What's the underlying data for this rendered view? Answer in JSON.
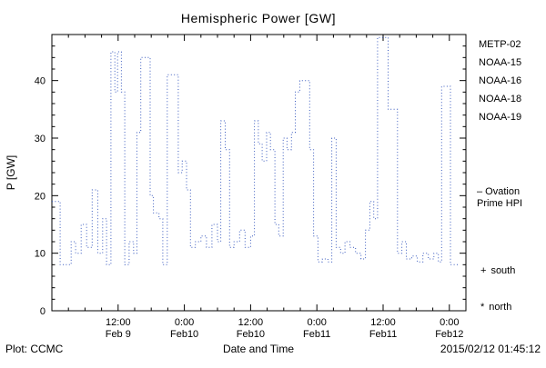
{
  "title": "Hemispheric Power [GW]",
  "y_axis_label": "P [GW]",
  "x_axis_label": "Date and Time",
  "footer": {
    "plot_credit": "Plot: CCMC",
    "timestamp": "2015/02/12 01:45:12"
  },
  "legend": {
    "satellites": [
      {
        "label": "METP-02",
        "color": "#000000"
      },
      {
        "label": "NOAA-15",
        "color": "#2a50c8"
      },
      {
        "label": "NOAA-16",
        "color": "#00b4c8"
      },
      {
        "label": "NOAA-18",
        "color": "#66c878"
      },
      {
        "label": "NOAA-19",
        "color": "#cc9833"
      }
    ],
    "model_line": {
      "color": "#3a5bbf",
      "label_lines": [
        "– Ovation",
        "Prime HPI"
      ]
    },
    "south": {
      "symbol": "+",
      "label": "south"
    },
    "north": {
      "symbol": "*",
      "label": "north"
    }
  },
  "chart_data": {
    "type": "line",
    "style": "dotted-step",
    "series_name": "Ovation Prime HPI",
    "color": "#3a5bbf",
    "title": "Hemispheric Power [GW]",
    "xlabel": "Date and Time",
    "ylabel": "P [GW]",
    "x_unit": "hours since 2015 Feb 9 00:00",
    "xlim_hours": [
      0,
      75
    ],
    "ylim": [
      0,
      48
    ],
    "y_ticks_major": [
      0,
      10,
      20,
      30,
      40
    ],
    "y_tick_minor_step": 2,
    "x_tick_minor_step_hours": 3,
    "x_ticks_major": [
      {
        "hour": 12,
        "time": "12:00",
        "date": "Feb 9"
      },
      {
        "hour": 24,
        "time": "0:00",
        "date": "Feb10"
      },
      {
        "hour": 36,
        "time": "12:00",
        "date": "Feb10"
      },
      {
        "hour": 48,
        "time": "0:00",
        "date": "Feb11"
      },
      {
        "hour": 60,
        "time": "12:00",
        "date": "Feb11"
      },
      {
        "hour": 72,
        "time": "0:00",
        "date": "Feb12"
      }
    ],
    "steps_hours_value": [
      [
        0,
        19
      ],
      [
        1.5,
        8
      ],
      [
        3.5,
        12
      ],
      [
        4.3,
        10
      ],
      [
        5.3,
        15
      ],
      [
        6.3,
        11
      ],
      [
        7.3,
        21
      ],
      [
        8.3,
        10
      ],
      [
        9.2,
        16
      ],
      [
        9.9,
        8
      ],
      [
        10.7,
        45
      ],
      [
        11.4,
        38
      ],
      [
        11.9,
        45
      ],
      [
        12.6,
        38
      ],
      [
        13.2,
        8
      ],
      [
        14,
        12
      ],
      [
        14.8,
        10
      ],
      [
        15.4,
        31
      ],
      [
        16.1,
        44
      ],
      [
        17.2,
        44
      ],
      [
        17.8,
        20
      ],
      [
        18.4,
        17
      ],
      [
        19.4,
        16
      ],
      [
        20.1,
        8
      ],
      [
        20.9,
        41
      ],
      [
        22.2,
        41
      ],
      [
        22.9,
        24
      ],
      [
        23.6,
        26
      ],
      [
        24.4,
        21
      ],
      [
        25.1,
        11
      ],
      [
        26,
        12
      ],
      [
        27,
        13
      ],
      [
        28,
        11
      ],
      [
        29,
        15
      ],
      [
        30,
        12
      ],
      [
        30.6,
        33
      ],
      [
        31.4,
        28
      ],
      [
        32.2,
        11
      ],
      [
        33,
        12
      ],
      [
        34,
        14
      ],
      [
        35,
        11
      ],
      [
        36,
        13
      ],
      [
        36.7,
        33
      ],
      [
        37.4,
        29
      ],
      [
        38.1,
        26
      ],
      [
        38.9,
        31
      ],
      [
        39.6,
        28
      ],
      [
        40.4,
        15
      ],
      [
        41.1,
        13
      ],
      [
        41.9,
        30
      ],
      [
        42.6,
        28
      ],
      [
        43.4,
        31
      ],
      [
        44.1,
        38
      ],
      [
        44.9,
        40
      ],
      [
        46,
        40
      ],
      [
        46.7,
        28
      ],
      [
        47.4,
        13
      ],
      [
        48.2,
        8.5
      ],
      [
        49,
        9
      ],
      [
        50,
        8.5
      ],
      [
        50.7,
        30
      ],
      [
        51.5,
        11
      ],
      [
        52.3,
        10
      ],
      [
        53.1,
        12
      ],
      [
        54,
        11
      ],
      [
        55,
        10
      ],
      [
        56,
        9
      ],
      [
        56.8,
        14
      ],
      [
        57.6,
        19
      ],
      [
        58.3,
        16
      ],
      [
        59,
        47.5
      ],
      [
        60.2,
        47.5
      ],
      [
        60.9,
        35
      ],
      [
        62,
        35
      ],
      [
        62.6,
        10
      ],
      [
        63.4,
        12
      ],
      [
        64.2,
        9
      ],
      [
        65.2,
        9.5
      ],
      [
        66.2,
        8.5
      ],
      [
        67.2,
        10
      ],
      [
        68.2,
        9
      ],
      [
        69.2,
        10
      ],
      [
        70,
        8.5
      ],
      [
        70.6,
        39
      ],
      [
        71.6,
        39
      ],
      [
        72.2,
        8
      ],
      [
        73.7,
        8
      ]
    ]
  }
}
